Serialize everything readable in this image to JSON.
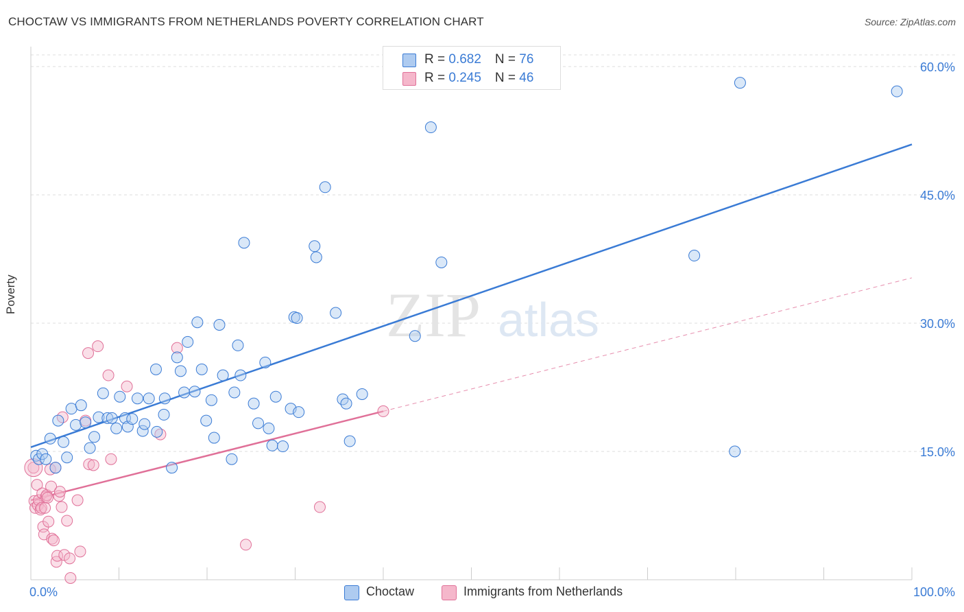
{
  "header": {
    "title": "CHOCTAW VS IMMIGRANTS FROM NETHERLANDS POVERTY CORRELATION CHART",
    "source": "Source: ZipAtlas.com"
  },
  "legend": {
    "row1": {
      "r_label": "R = ",
      "r_value": "0.682",
      "n_label": "N = ",
      "n_value": "76"
    },
    "row2": {
      "r_label": "R = ",
      "r_value": "0.245",
      "n_label": "N = ",
      "n_value": "46"
    }
  },
  "watermark": {
    "zip": "ZIP",
    "atlas": "atlas"
  },
  "colors": {
    "blue": "#3a7bd5",
    "blue_fill": "#aecbf0",
    "pink": "#e07098",
    "pink_fill": "#f5b7cb",
    "grid": "#dddddd"
  },
  "chart_data": {
    "type": "scatter",
    "title": "CHOCTAW VS IMMIGRANTS FROM NETHERLANDS POVERTY CORRELATION CHART",
    "xlabel": "",
    "ylabel": "Poverty",
    "xlim": [
      0,
      100
    ],
    "ylim": [
      0,
      60
    ],
    "x_tick_labels": [
      "0.0%",
      "100.0%"
    ],
    "y_ticks": [
      15,
      30,
      45,
      60
    ],
    "y_tick_labels": [
      "15.0%",
      "30.0%",
      "45.0%",
      "60.0%"
    ],
    "legend_position": "top-center",
    "series": [
      {
        "name": "Choctaw",
        "color": "#3a7bd5",
        "fill": "#aecbf0",
        "trendline": {
          "x": [
            0,
            100
          ],
          "y": [
            15.5,
            50.9
          ],
          "style": "solid"
        },
        "points": [
          [
            0.6,
            14.5
          ],
          [
            0.9,
            14.1
          ],
          [
            1.3,
            14.7
          ],
          [
            1.7,
            14.1
          ],
          [
            2.2,
            16.5
          ],
          [
            2.8,
            13.1
          ],
          [
            3.1,
            18.6
          ],
          [
            3.7,
            16.1
          ],
          [
            4.1,
            14.3
          ],
          [
            4.6,
            20.0
          ],
          [
            5.1,
            18.1
          ],
          [
            5.7,
            20.4
          ],
          [
            6.2,
            18.4
          ],
          [
            6.7,
            15.4
          ],
          [
            7.2,
            16.7
          ],
          [
            7.7,
            19.0
          ],
          [
            8.2,
            21.8
          ],
          [
            8.7,
            18.9
          ],
          [
            9.2,
            18.9
          ],
          [
            9.7,
            17.7
          ],
          [
            10.1,
            21.4
          ],
          [
            10.7,
            18.9
          ],
          [
            11.0,
            17.9
          ],
          [
            11.5,
            18.8
          ],
          [
            12.1,
            21.2
          ],
          [
            12.7,
            17.4
          ],
          [
            12.9,
            18.2
          ],
          [
            13.4,
            21.2
          ],
          [
            14.3,
            17.3
          ],
          [
            14.2,
            24.6
          ],
          [
            15.2,
            21.2
          ],
          [
            15.1,
            19.3
          ],
          [
            16.0,
            13.1
          ],
          [
            16.6,
            26.0
          ],
          [
            17.0,
            24.4
          ],
          [
            17.4,
            21.9
          ],
          [
            17.8,
            27.8
          ],
          [
            18.6,
            22.0
          ],
          [
            18.9,
            30.1
          ],
          [
            19.4,
            24.6
          ],
          [
            19.9,
            18.6
          ],
          [
            20.5,
            21.0
          ],
          [
            20.8,
            16.6
          ],
          [
            21.4,
            29.8
          ],
          [
            21.8,
            23.9
          ],
          [
            22.8,
            14.1
          ],
          [
            23.1,
            21.9
          ],
          [
            23.5,
            27.4
          ],
          [
            23.8,
            23.9
          ],
          [
            24.2,
            39.4
          ],
          [
            25.3,
            20.6
          ],
          [
            25.8,
            18.3
          ],
          [
            26.6,
            25.4
          ],
          [
            27.0,
            17.7
          ],
          [
            27.4,
            15.7
          ],
          [
            27.8,
            21.4
          ],
          [
            28.6,
            15.6
          ],
          [
            29.5,
            20.0
          ],
          [
            29.9,
            30.7
          ],
          [
            30.2,
            30.6
          ],
          [
            30.4,
            19.6
          ],
          [
            32.2,
            39.0
          ],
          [
            32.4,
            37.7
          ],
          [
            33.4,
            45.9
          ],
          [
            34.6,
            31.2
          ],
          [
            35.4,
            21.1
          ],
          [
            35.8,
            20.6
          ],
          [
            36.2,
            16.2
          ],
          [
            37.6,
            21.7
          ],
          [
            43.6,
            28.5
          ],
          [
            45.4,
            52.9
          ],
          [
            46.6,
            37.1
          ],
          [
            75.3,
            37.9
          ],
          [
            79.9,
            15.0
          ],
          [
            80.5,
            58.1
          ],
          [
            98.3,
            57.1
          ]
        ]
      },
      {
        "name": "Immigrants from Netherlands",
        "color": "#e07098",
        "fill": "#f5b7cb",
        "trendline": {
          "x": [
            0,
            40
          ],
          "y": [
            9.3,
            19.7
          ],
          "style": "solid",
          "dashed_extension": {
            "x": [
              40,
              100
            ],
            "y": [
              19.7,
              35.3
            ]
          }
        },
        "points": [
          [
            0.3,
            13.1
          ],
          [
            0.4,
            9.2
          ],
          [
            0.5,
            8.4
          ],
          [
            0.7,
            11.1
          ],
          [
            0.8,
            8.7
          ],
          [
            0.9,
            9.3
          ],
          [
            1.1,
            8.2
          ],
          [
            1.2,
            8.4
          ],
          [
            1.3,
            10.1
          ],
          [
            1.4,
            6.2
          ],
          [
            1.5,
            5.3
          ],
          [
            1.6,
            8.4
          ],
          [
            1.7,
            9.7
          ],
          [
            1.8,
            9.9
          ],
          [
            1.9,
            9.6
          ],
          [
            2.0,
            6.8
          ],
          [
            2.2,
            12.9
          ],
          [
            2.3,
            10.9
          ],
          [
            2.4,
            4.8
          ],
          [
            2.6,
            4.6
          ],
          [
            2.8,
            13.1
          ],
          [
            2.9,
            2.1
          ],
          [
            3.0,
            2.8
          ],
          [
            3.2,
            9.8
          ],
          [
            3.3,
            10.3
          ],
          [
            3.5,
            8.5
          ],
          [
            3.6,
            19.0
          ],
          [
            3.8,
            2.9
          ],
          [
            4.1,
            6.9
          ],
          [
            4.4,
            2.5
          ],
          [
            4.5,
            0.2
          ],
          [
            5.3,
            9.3
          ],
          [
            5.6,
            3.3
          ],
          [
            6.2,
            18.6
          ],
          [
            6.5,
            26.5
          ],
          [
            6.6,
            13.5
          ],
          [
            7.1,
            13.4
          ],
          [
            7.6,
            27.3
          ],
          [
            8.8,
            23.9
          ],
          [
            9.1,
            14.1
          ],
          [
            10.9,
            22.6
          ],
          [
            14.7,
            17.0
          ],
          [
            16.6,
            27.1
          ],
          [
            24.4,
            4.1
          ],
          [
            32.8,
            8.5
          ],
          [
            40.0,
            19.7
          ]
        ]
      }
    ]
  },
  "bottom_legend": {
    "blue_label": "Choctaw",
    "pink_label": "Immigrants from Netherlands"
  }
}
